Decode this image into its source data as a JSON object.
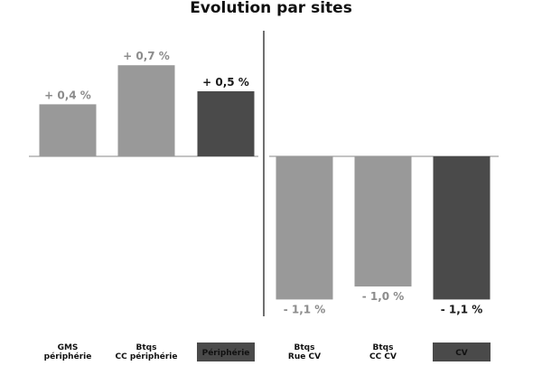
{
  "chart_data": {
    "type": "bar",
    "title": "Evolution par sites",
    "categories": [
      [
        "GMS",
        "périphérie"
      ],
      [
        "Btqs",
        "CC périphérie"
      ],
      [
        "Périphérie"
      ],
      [
        "Btqs",
        "Rue CV"
      ],
      [
        "Btqs",
        "CC CV"
      ],
      [
        "CV"
      ]
    ],
    "values": [
      0.4,
      0.7,
      0.5,
      -1.1,
      -1.0,
      -1.1
    ],
    "value_labels": [
      "+ 0,4 %",
      "+ 0,7 %",
      "+ 0,5 %",
      "- 1,1 %",
      "- 1,0 %",
      "- 1,1 %"
    ],
    "highlighted": [
      false,
      false,
      true,
      false,
      false,
      true
    ],
    "ylim": [
      -1.2,
      0.8
    ],
    "grid": false,
    "xlabel": "",
    "ylabel": "",
    "colors": {
      "bar": "#999999",
      "highlight": "#4a4a4a",
      "label_normal": "#8c8c8c",
      "label_highlight": "#1a1a1a",
      "axis": "#888888",
      "divider": "#111111"
    }
  }
}
